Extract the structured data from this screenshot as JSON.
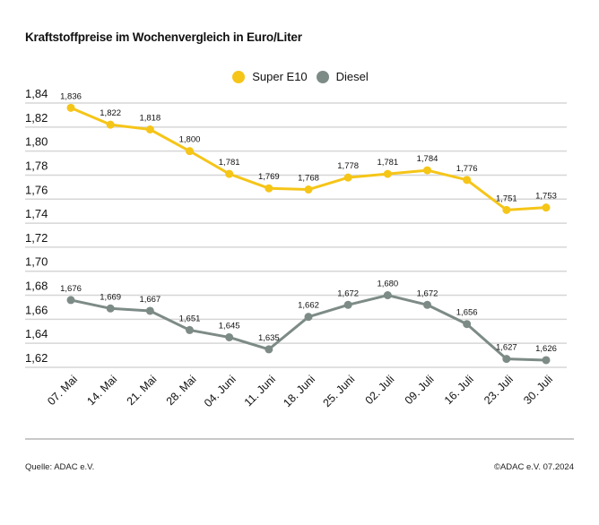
{
  "title": "Kraftstoffpreise im Wochenvergleich in Euro/Liter",
  "source": "Quelle: ADAC e.V.",
  "copyright": "©ADAC e.V. 07.2024",
  "chart_data": {
    "type": "line",
    "title": "Kraftstoffpreise im Wochenvergleich in Euro/Liter",
    "categories": [
      "07. Mai",
      "14. Mai",
      "21. Mai",
      "28. Mai",
      "04. Juni",
      "11. Juni",
      "18. Juni",
      "25. Juni",
      "02. Juli",
      "09. Juli",
      "16. Juli",
      "23. Juli",
      "30. Juli"
    ],
    "series": [
      {
        "name": "Super E10",
        "color": "#F5C518",
        "values": [
          1.836,
          1.822,
          1.818,
          1.8,
          1.781,
          1.769,
          1.768,
          1.778,
          1.781,
          1.784,
          1.776,
          1.751,
          1.753
        ]
      },
      {
        "name": "Diesel",
        "color": "#7D8B87",
        "values": [
          1.676,
          1.669,
          1.667,
          1.651,
          1.645,
          1.635,
          1.662,
          1.672,
          1.68,
          1.672,
          1.656,
          1.627,
          1.626
        ]
      }
    ],
    "yticks": [
      "1,84",
      "1,82",
      "1,80",
      "1,78",
      "1,76",
      "1,74",
      "1,72",
      "1,70",
      "1,68",
      "1,66",
      "1,64",
      "1,62"
    ],
    "ylim": [
      1.62,
      1.84
    ],
    "grid": true,
    "legend_placement": "top-center",
    "decimal_separator": ","
  }
}
